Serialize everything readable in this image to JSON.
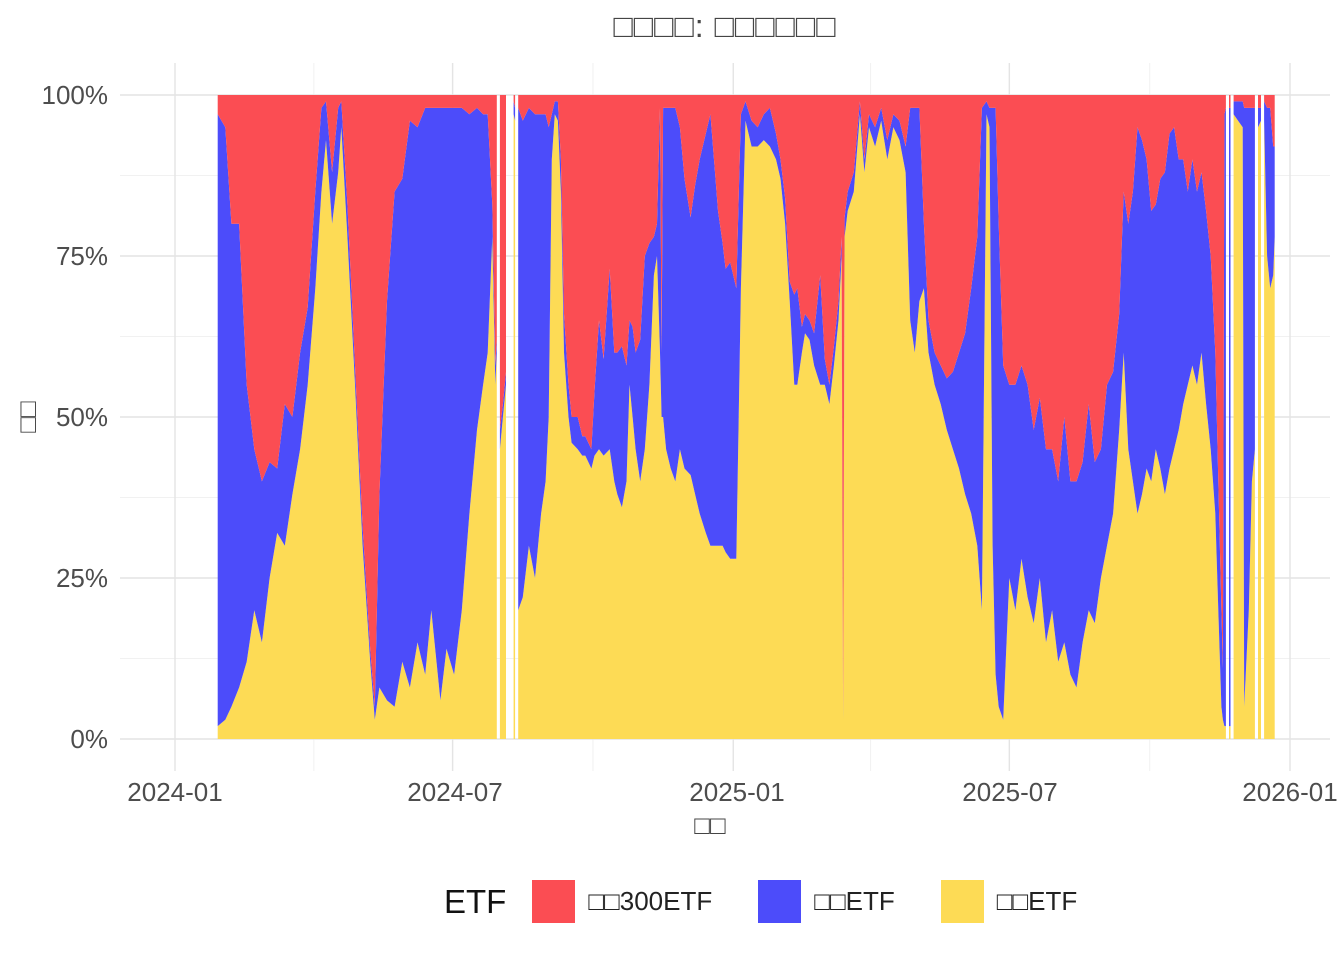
{
  "page": {
    "title": "□□□□: □□□□□□"
  },
  "axes": {
    "y_title": "□□",
    "x_title": "□□",
    "y_tick_labels": [
      "100%",
      "75%",
      "50%",
      "25%",
      "0%"
    ],
    "x_tick_labels": [
      "2024-01",
      "2024-07",
      "2025-01",
      "2025-07",
      "2026-01"
    ]
  },
  "legend": {
    "title": "ETF",
    "items": [
      {
        "label": "□□300ETF",
        "color": "#FB4D53"
      },
      {
        "label": "□□ETF",
        "color": "#4C4CFA"
      },
      {
        "label": "□□ETF",
        "color": "#FDDB55"
      }
    ]
  },
  "chart_data": {
    "type": "area",
    "variant": "100-percent-stacked-daily",
    "title": "□□□□: □□□□□□",
    "xlabel": "□□",
    "ylabel": "□□",
    "x_domain": [
      "2024-01",
      "2026-01"
    ],
    "x_ticks": [
      {
        "t": 0,
        "label": "2024-01"
      },
      {
        "t": 182,
        "label": "2024-07"
      },
      {
        "t": 366,
        "label": "2025-01"
      },
      {
        "t": 547,
        "label": "2025-07"
      },
      {
        "t": 731,
        "label": "2026-01"
      }
    ],
    "x_minor": [
      91,
      274,
      456,
      639
    ],
    "y_ticks": [
      {
        "v": 0,
        "label": "0%"
      },
      {
        "v": 25,
        "label": "25%"
      },
      {
        "v": 50,
        "label": "50%"
      },
      {
        "v": 75,
        "label": "75%"
      },
      {
        "v": 100,
        "label": "100%"
      }
    ],
    "y_minor": [
      12.5,
      37.5,
      62.5,
      87.5
    ],
    "ylim": [
      0,
      100
    ],
    "grid": "on",
    "legend_position": "bottom",
    "series_bottom_to_top": [
      {
        "name": "□□ETF",
        "color": "#FDDB55"
      },
      {
        "name": "□□ETF",
        "color": "#4C4CFA"
      },
      {
        "name": "□□300ETF",
        "color": "#FB4D53"
      }
    ],
    "point_format": "[t_days_since_2024-01-01, yellow_pct, blue_pct]; red_pct = 100 - yellow_pct - blue_pct; gaps between segments are missing data (white)",
    "segments": [
      [
        [
          28,
          2,
          95
        ],
        [
          33,
          3,
          92
        ],
        [
          37,
          5,
          75
        ],
        [
          42,
          8,
          72
        ],
        [
          47,
          12,
          43
        ],
        [
          52,
          20,
          25
        ],
        [
          57,
          15,
          25
        ],
        [
          62,
          25,
          18
        ],
        [
          67,
          32,
          10
        ],
        [
          72,
          30,
          22
        ],
        [
          77,
          38,
          12
        ],
        [
          82,
          45,
          15
        ],
        [
          87,
          55,
          12
        ],
        [
          92,
          70,
          15
        ],
        [
          96,
          85,
          13
        ],
        [
          99,
          93,
          6
        ],
        [
          103,
          80,
          8
        ],
        [
          107,
          88,
          10
        ],
        [
          109,
          95,
          4
        ],
        [
          113,
          78,
          5
        ],
        [
          118,
          55,
          3
        ],
        [
          123,
          30,
          3
        ],
        [
          128,
          12,
          2
        ],
        [
          131,
          3,
          2
        ],
        [
          134,
          8,
          30
        ],
        [
          139,
          6,
          62
        ],
        [
          144,
          5,
          80
        ],
        [
          149,
          12,
          75
        ],
        [
          154,
          8,
          88
        ],
        [
          159,
          15,
          80
        ],
        [
          164,
          10,
          88
        ],
        [
          168,
          20,
          78
        ],
        [
          174,
          6,
          92
        ],
        [
          178,
          14,
          84
        ],
        [
          183,
          10,
          88
        ],
        [
          188,
          20,
          78
        ],
        [
          193,
          35,
          62
        ],
        [
          198,
          48,
          50
        ],
        [
          202,
          55,
          42
        ],
        [
          205,
          60,
          37
        ],
        [
          208,
          78,
          5
        ],
        [
          210,
          55,
          3
        ],
        [
          211,
          60,
          2
        ]
      ],
      [
        [
          213,
          45,
          3
        ],
        [
          215,
          50,
          2
        ],
        [
          217,
          55,
          2
        ]
      ],
      [
        [
          222,
          97,
          2
        ],
        [
          223,
          96,
          2
        ]
      ],
      [
        [
          225,
          20,
          78
        ],
        [
          228,
          22,
          74
        ],
        [
          232,
          30,
          68
        ],
        [
          236,
          25,
          72
        ],
        [
          240,
          35,
          62
        ],
        [
          243,
          40,
          57
        ],
        [
          245,
          50,
          45
        ],
        [
          247,
          90,
          7
        ],
        [
          249,
          97,
          2
        ],
        [
          251,
          96,
          3
        ],
        [
          253,
          85,
          5
        ],
        [
          255,
          60,
          6
        ],
        [
          258,
          50,
          5
        ],
        [
          260,
          46,
          4
        ],
        [
          264,
          45,
          5
        ],
        [
          267,
          44,
          3
        ],
        [
          269,
          44,
          3
        ],
        [
          273,
          42,
          3
        ],
        [
          275,
          44,
          10
        ],
        [
          278,
          45,
          20
        ],
        [
          281,
          44,
          15
        ],
        [
          285,
          45,
          28
        ],
        [
          288,
          40,
          20
        ],
        [
          290,
          38,
          22
        ],
        [
          293,
          36,
          25
        ],
        [
          296,
          40,
          18
        ],
        [
          298,
          55,
          10
        ],
        [
          300,
          50,
          14
        ],
        [
          302,
          45,
          15
        ],
        [
          305,
          40,
          22
        ],
        [
          308,
          45,
          30
        ],
        [
          311,
          55,
          22
        ],
        [
          314,
          72,
          6
        ],
        [
          316,
          75,
          5
        ],
        [
          318,
          60,
          38
        ],
        [
          319,
          50,
          10
        ],
        [
          320,
          50,
          48
        ],
        [
          322,
          45,
          53
        ],
        [
          325,
          42,
          56
        ],
        [
          328,
          40,
          58
        ],
        [
          331,
          45,
          50
        ],
        [
          334,
          42,
          45
        ],
        [
          338,
          41,
          40
        ],
        [
          341,
          38,
          48
        ],
        [
          344,
          35,
          55
        ],
        [
          348,
          32,
          62
        ],
        [
          351,
          30,
          67
        ],
        [
          354,
          30,
          58
        ],
        [
          356,
          30,
          52
        ],
        [
          359,
          30,
          47
        ],
        [
          361,
          29,
          44
        ],
        [
          364,
          28,
          46
        ],
        [
          368,
          28,
          42
        ],
        [
          371,
          70,
          27
        ],
        [
          374,
          96,
          3
        ],
        [
          378,
          92,
          4
        ],
        [
          382,
          92,
          3
        ],
        [
          386,
          93,
          4
        ],
        [
          390,
          92,
          6
        ],
        [
          394,
          90,
          4
        ],
        [
          397,
          87,
          3
        ],
        [
          400,
          80,
          4
        ],
        [
          403,
          68,
          3
        ],
        [
          406,
          55,
          14
        ],
        [
          408,
          55,
          15
        ],
        [
          411,
          60,
          4
        ],
        [
          413,
          63,
          3
        ],
        [
          416,
          62,
          3
        ],
        [
          419,
          58,
          5
        ],
        [
          423,
          55,
          17
        ],
        [
          426,
          55,
          4
        ],
        [
          429,
          52,
          3
        ],
        [
          432,
          58,
          3
        ],
        [
          435,
          65,
          3
        ],
        [
          437,
          75,
          3
        ],
        [
          438,
          3,
          1
        ],
        [
          439,
          78,
          3
        ],
        [
          441,
          82,
          3
        ],
        [
          445,
          85,
          3
        ],
        [
          449,
          97,
          2
        ],
        [
          452,
          88,
          2
        ],
        [
          455,
          95,
          2
        ],
        [
          459,
          92,
          3
        ],
        [
          463,
          96,
          2
        ],
        [
          467,
          90,
          3
        ],
        [
          471,
          95,
          2
        ],
        [
          475,
          93,
          3
        ],
        [
          479,
          88,
          4
        ],
        [
          482,
          65,
          33
        ],
        [
          485,
          60,
          38
        ],
        [
          488,
          68,
          30
        ],
        [
          491,
          70,
          10
        ],
        [
          494,
          60,
          5
        ],
        [
          498,
          55,
          5
        ],
        [
          502,
          52,
          6
        ],
        [
          506,
          48,
          8
        ],
        [
          510,
          45,
          12
        ],
        [
          514,
          42,
          18
        ],
        [
          518,
          38,
          25
        ],
        [
          522,
          35,
          35
        ],
        [
          526,
          30,
          48
        ],
        [
          529,
          20,
          78
        ],
        [
          532,
          97,
          2
        ],
        [
          534,
          95,
          3
        ],
        [
          536,
          30,
          68
        ],
        [
          538,
          10,
          88
        ],
        [
          540,
          5,
          75
        ],
        [
          543,
          3,
          55
        ],
        [
          547,
          25,
          30
        ],
        [
          551,
          20,
          35
        ],
        [
          555,
          28,
          30
        ],
        [
          559,
          22,
          33
        ],
        [
          563,
          18,
          30
        ],
        [
          567,
          25,
          28
        ],
        [
          571,
          15,
          30
        ],
        [
          575,
          20,
          25
        ],
        [
          579,
          12,
          28
        ],
        [
          583,
          15,
          35
        ],
        [
          587,
          10,
          30
        ],
        [
          591,
          8,
          32
        ],
        [
          595,
          15,
          28
        ],
        [
          599,
          20,
          32
        ],
        [
          603,
          18,
          25
        ],
        [
          607,
          25,
          20
        ],
        [
          611,
          30,
          25
        ],
        [
          615,
          35,
          22
        ],
        [
          619,
          48,
          18
        ],
        [
          622,
          60,
          25
        ],
        [
          625,
          45,
          35
        ],
        [
          628,
          40,
          45
        ],
        [
          631,
          35,
          60
        ],
        [
          634,
          38,
          55
        ],
        [
          637,
          42,
          48
        ],
        [
          640,
          40,
          42
        ],
        [
          643,
          45,
          38
        ],
        [
          646,
          42,
          45
        ],
        [
          649,
          38,
          50
        ],
        [
          652,
          42,
          52
        ],
        [
          655,
          45,
          50
        ],
        [
          658,
          48,
          42
        ],
        [
          661,
          52,
          38
        ],
        [
          664,
          55,
          30
        ],
        [
          667,
          58,
          32
        ],
        [
          670,
          55,
          30
        ],
        [
          673,
          60,
          28
        ],
        [
          676,
          52,
          30
        ],
        [
          679,
          45,
          30
        ],
        [
          682,
          35,
          25
        ],
        [
          684,
          20,
          20
        ],
        [
          686,
          5,
          15
        ],
        [
          687,
          3,
          8
        ],
        [
          688,
          2,
          95
        ],
        [
          689,
          2,
          96
        ]
      ],
      [
        [
          691,
          2,
          96
        ],
        [
          692,
          2,
          96
        ]
      ],
      [
        [
          694,
          97,
          2
        ],
        [
          697,
          96,
          3
        ],
        [
          700,
          95,
          4
        ],
        [
          701,
          5,
          93
        ],
        [
          704,
          20,
          78
        ],
        [
          706,
          40,
          58
        ],
        [
          708,
          45,
          53
        ]
      ],
      [
        [
          710,
          95,
          3
        ],
        [
          712,
          96,
          2
        ]
      ],
      [
        [
          714,
          96,
          3
        ],
        [
          716,
          75,
          23
        ],
        [
          718,
          70,
          28
        ],
        [
          720,
          72,
          20
        ],
        [
          721,
          78,
          14
        ]
      ]
    ]
  }
}
